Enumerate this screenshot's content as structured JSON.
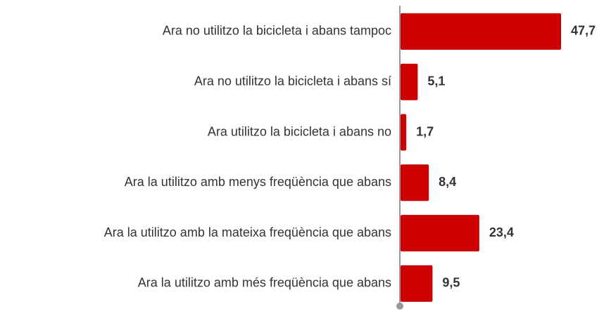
{
  "chart_data": {
    "type": "bar",
    "orientation": "horizontal",
    "categories": [
      "Ara no utilitzo la bicicleta i abans tampoc",
      "Ara no utilitzo la bicicleta i abans sí",
      "Ara utilitzo la bicicleta i abans no",
      "Ara la utilitzo amb menys freqüència que abans",
      "Ara la utilitzo amb la mateixa freqüència que abans",
      "Ara la utilitzo amb més freqüència que abans"
    ],
    "values": [
      47.7,
      5.1,
      1.7,
      8.4,
      23.4,
      9.5
    ],
    "value_labels": [
      "47,7",
      "5,1",
      "1,7",
      "8,4",
      "23,4",
      "9,5"
    ],
    "color": "#cc0000"
  }
}
